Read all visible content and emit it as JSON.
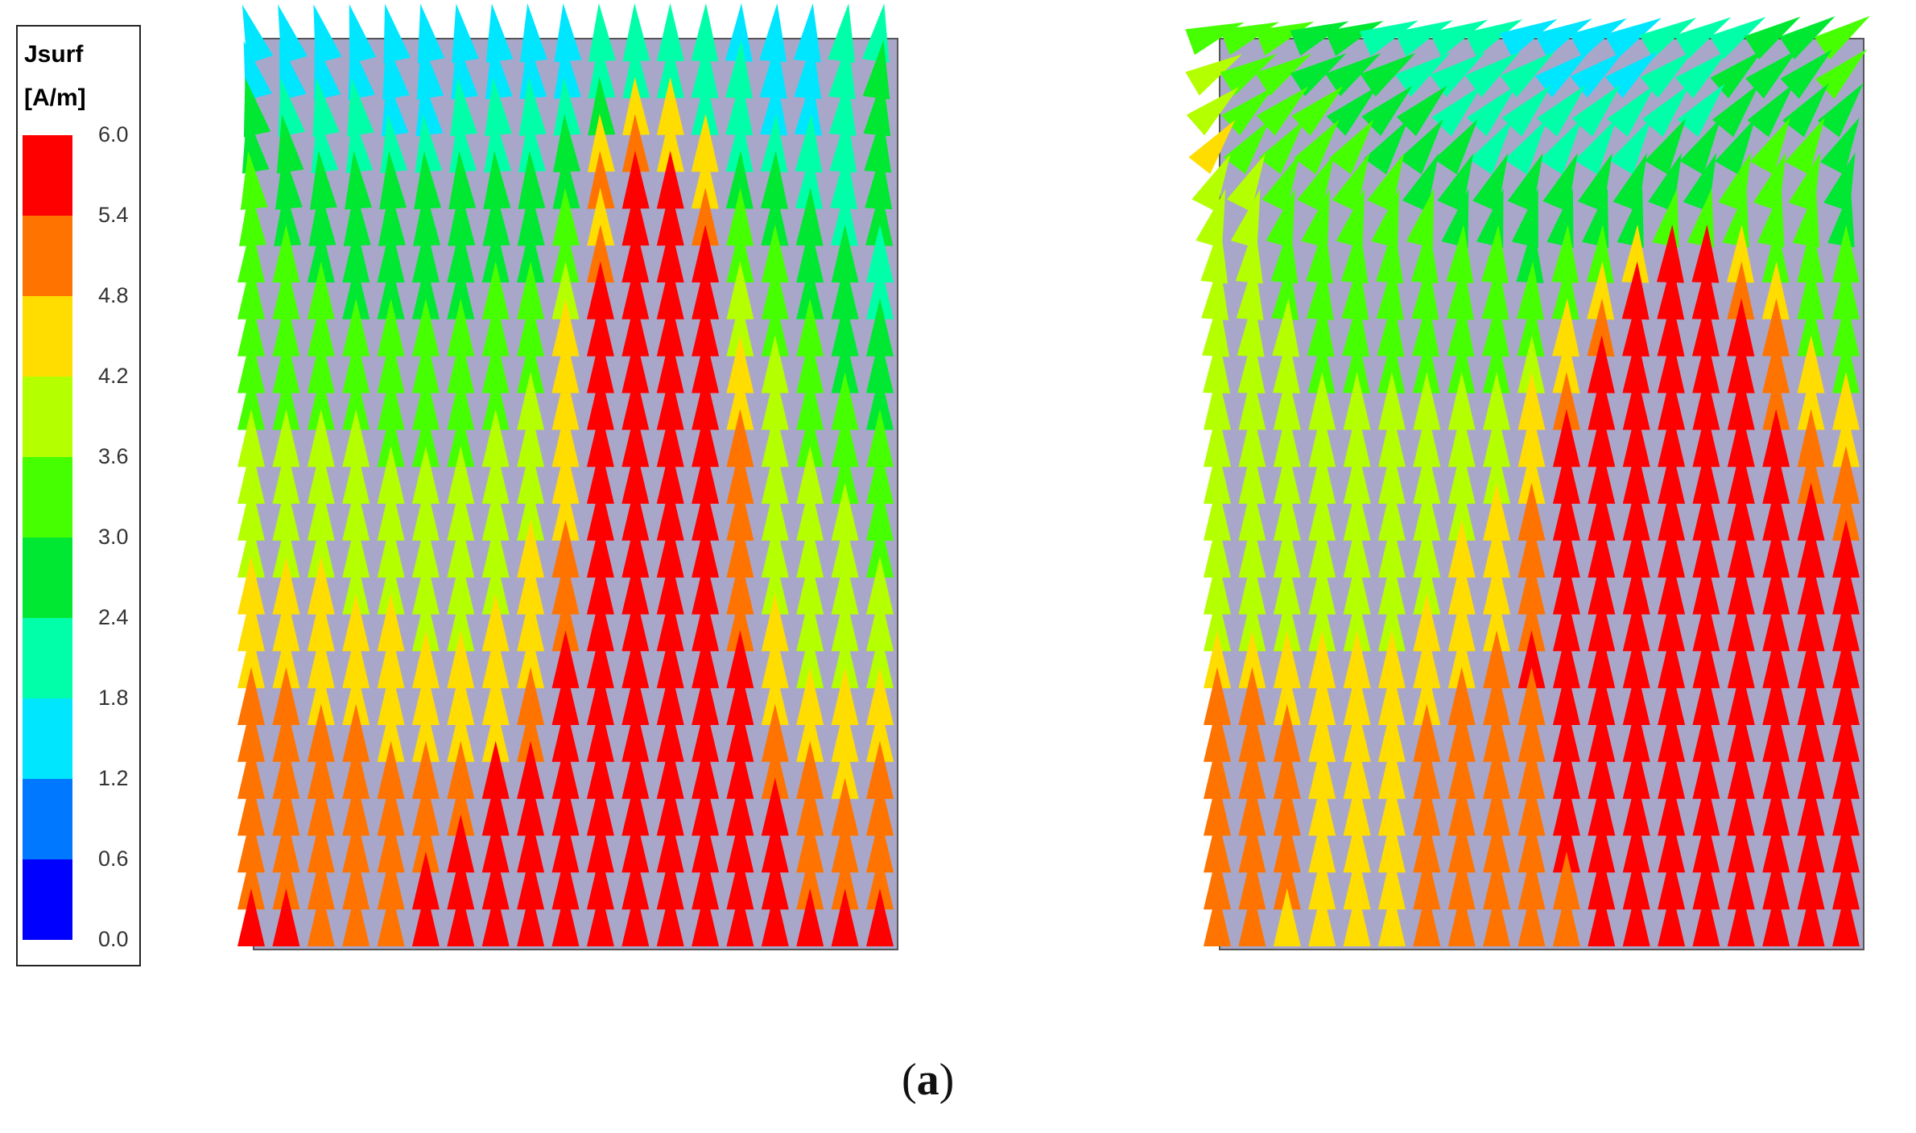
{
  "colorbar": {
    "title_line1": "Jsurf",
    "title_line2": "[A/m]",
    "ticks": [
      "6.0",
      "5.4",
      "4.8",
      "4.2",
      "3.6",
      "3.0",
      "2.4",
      "1.8",
      "1.2",
      "0.6",
      "0.0"
    ],
    "colors": [
      "#ff0000",
      "#ff7300",
      "#ffdd00",
      "#b4ff00",
      "#46ff00",
      "#00e832",
      "#00ffa8",
      "#00e6ff",
      "#0078ff",
      "#0000ff"
    ]
  },
  "caption": {
    "label": "a"
  },
  "chart_data": [
    {
      "type": "vector-field",
      "quantity": "Jsurf",
      "unit": "A/m",
      "color_range": [
        0.0,
        6.0
      ],
      "rows": 25,
      "cols": 19,
      "magnitude_grid": [
        [
          1.5,
          1.6,
          1.5,
          1.4,
          1.5,
          1.5,
          1.6,
          1.5,
          1.4,
          1.5,
          1.9,
          2.0,
          2.0,
          1.8,
          1.7,
          1.6,
          1.5,
          1.9,
          2.2
        ],
        [
          1.6,
          1.5,
          1.5,
          1.5,
          1.4,
          1.5,
          1.6,
          1.5,
          1.5,
          1.6,
          2.2,
          2.2,
          2.0,
          1.9,
          1.8,
          1.6,
          1.6,
          2.1,
          2.6
        ],
        [
          2.4,
          2.0,
          1.9,
          1.8,
          1.7,
          1.7,
          1.8,
          1.9,
          2.0,
          2.1,
          2.6,
          4.6,
          4.5,
          2.0,
          1.9,
          1.7,
          1.5,
          2.0,
          2.6
        ],
        [
          2.8,
          2.4,
          2.3,
          2.2,
          2.2,
          2.1,
          2.1,
          2.2,
          2.3,
          2.4,
          4.6,
          5.3,
          4.6,
          4.4,
          2.1,
          2.0,
          1.9,
          2.2,
          2.6
        ],
        [
          3.0,
          2.7,
          2.6,
          2.5,
          2.4,
          2.4,
          2.4,
          2.4,
          2.5,
          2.7,
          4.8,
          5.6,
          5.7,
          4.6,
          2.6,
          2.4,
          2.2,
          2.1,
          2.5
        ],
        [
          3.1,
          2.9,
          2.8,
          2.7,
          2.6,
          2.6,
          2.6,
          2.7,
          2.8,
          3.0,
          4.7,
          5.8,
          5.8,
          5.0,
          3.0,
          2.7,
          2.5,
          2.3,
          2.5
        ],
        [
          3.1,
          3.0,
          2.9,
          2.8,
          2.8,
          2.8,
          2.8,
          2.9,
          2.9,
          3.3,
          5.1,
          6.0,
          6.0,
          5.8,
          3.4,
          3.0,
          2.7,
          2.4,
          2.3
        ],
        [
          3.2,
          3.1,
          3.0,
          2.9,
          2.9,
          2.9,
          2.9,
          3.0,
          3.1,
          3.8,
          5.6,
          6.0,
          6.0,
          5.8,
          3.8,
          3.2,
          2.9,
          2.6,
          2.3
        ],
        [
          3.2,
          3.2,
          3.1,
          3.0,
          3.0,
          3.0,
          3.0,
          3.1,
          3.3,
          4.4,
          6.0,
          6.0,
          6.0,
          6.0,
          4.1,
          3.4,
          3.0,
          2.8,
          2.4
        ],
        [
          3.3,
          3.2,
          3.2,
          3.1,
          3.1,
          3.1,
          3.1,
          3.2,
          3.5,
          4.5,
          6.0,
          6.0,
          6.0,
          6.0,
          4.4,
          3.6,
          3.2,
          2.9,
          2.4
        ],
        [
          3.3,
          3.3,
          3.3,
          3.2,
          3.2,
          3.2,
          3.3,
          3.4,
          3.8,
          4.6,
          6.0,
          6.0,
          6.0,
          6.0,
          4.6,
          3.8,
          3.3,
          3.1,
          2.6
        ],
        [
          3.8,
          3.7,
          3.6,
          3.6,
          3.5,
          3.5,
          3.5,
          3.6,
          3.9,
          4.6,
          6.0,
          6.0,
          6.0,
          6.0,
          5.0,
          4.0,
          3.4,
          3.2,
          3.0
        ],
        [
          3.9,
          3.8,
          3.8,
          3.7,
          3.7,
          3.7,
          3.7,
          3.8,
          4.0,
          4.7,
          6.0,
          6.0,
          6.0,
          6.0,
          5.2,
          4.1,
          3.6,
          3.4,
          3.1
        ],
        [
          3.9,
          3.9,
          3.9,
          3.8,
          3.8,
          3.8,
          3.8,
          3.9,
          4.1,
          4.7,
          6.0,
          6.0,
          6.0,
          6.0,
          5.2,
          4.0,
          3.7,
          3.6,
          3.3
        ],
        [
          4.0,
          4.0,
          4.0,
          3.9,
          3.9,
          3.9,
          3.9,
          4.0,
          4.2,
          4.8,
          6.0,
          6.0,
          6.0,
          6.0,
          5.0,
          4.0,
          3.8,
          3.8,
          3.5
        ],
        [
          4.5,
          4.3,
          4.2,
          4.1,
          4.0,
          4.0,
          4.0,
          4.1,
          4.3,
          5.0,
          6.0,
          6.0,
          6.0,
          6.0,
          4.8,
          4.1,
          3.9,
          3.9,
          3.7
        ],
        [
          4.6,
          4.5,
          4.4,
          4.3,
          4.2,
          4.1,
          4.1,
          4.2,
          4.4,
          5.2,
          6.0,
          6.0,
          6.0,
          6.0,
          5.0,
          4.2,
          4.0,
          4.0,
          3.8
        ],
        [
          4.7,
          4.6,
          4.5,
          4.4,
          4.3,
          4.3,
          4.2,
          4.2,
          4.5,
          5.4,
          6.0,
          6.0,
          6.0,
          6.0,
          5.4,
          4.4,
          4.0,
          4.0,
          4.0
        ],
        [
          4.9,
          4.8,
          4.7,
          4.6,
          4.5,
          4.4,
          4.3,
          4.2,
          4.8,
          5.8,
          6.0,
          6.0,
          6.0,
          6.0,
          5.6,
          4.6,
          4.2,
          4.2,
          4.2
        ],
        [
          5.0,
          5.0,
          4.9,
          4.8,
          4.7,
          4.6,
          4.5,
          4.4,
          5.1,
          6.0,
          6.0,
          6.0,
          6.0,
          6.0,
          5.8,
          5.0,
          4.5,
          4.4,
          4.5
        ],
        [
          5.1,
          5.1,
          5.1,
          5.0,
          4.9,
          5.0,
          4.9,
          5.4,
          5.6,
          6.0,
          6.0,
          6.0,
          6.0,
          6.0,
          6.0,
          5.3,
          4.8,
          4.7,
          4.8
        ],
        [
          5.2,
          5.2,
          5.2,
          5.1,
          5.1,
          5.2,
          5.2,
          5.7,
          6.0,
          6.0,
          6.0,
          6.0,
          6.0,
          6.0,
          6.0,
          5.6,
          5.1,
          5.0,
          5.0
        ],
        [
          5.3,
          5.3,
          5.3,
          5.2,
          5.2,
          5.3,
          5.6,
          6.0,
          6.0,
          6.0,
          6.0,
          6.0,
          6.0,
          6.0,
          6.0,
          5.8,
          5.2,
          5.1,
          5.1
        ],
        [
          5.3,
          5.3,
          5.3,
          5.3,
          5.3,
          5.4,
          5.9,
          6.0,
          6.0,
          6.0,
          6.0,
          6.0,
          6.0,
          6.0,
          6.0,
          6.0,
          5.3,
          5.2,
          5.2
        ],
        [
          5.4,
          5.4,
          5.3,
          5.3,
          5.3,
          5.4,
          6.0,
          6.0,
          6.0,
          6.0,
          6.0,
          6.0,
          6.0,
          6.0,
          6.0,
          6.0,
          6.0,
          5.4,
          5.9
        ]
      ]
    },
    {
      "type": "vector-field",
      "quantity": "Jsurf",
      "unit": "A/m",
      "color_range": [
        0.0,
        6.0
      ],
      "rows": 25,
      "cols": 19,
      "magnitude_grid": [
        [
          3.5,
          3.3,
          3.0,
          2.8,
          2.5,
          2.3,
          2.1,
          1.9,
          1.8,
          1.7,
          1.6,
          1.5,
          1.6,
          1.8,
          2.0,
          2.3,
          2.6,
          2.9,
          3.2
        ],
        [
          3.6,
          3.3,
          3.0,
          2.9,
          2.7,
          2.5,
          2.3,
          2.1,
          1.9,
          1.8,
          1.7,
          1.6,
          1.7,
          1.8,
          2.1,
          2.4,
          2.6,
          2.8,
          3.0
        ],
        [
          4.0,
          3.4,
          3.2,
          3.0,
          2.9,
          2.7,
          2.5,
          2.3,
          2.1,
          2.0,
          2.0,
          1.9,
          2.0,
          2.1,
          2.3,
          2.6,
          2.8,
          2.9,
          2.9
        ],
        [
          4.2,
          3.5,
          3.3,
          3.1,
          3.0,
          2.9,
          2.7,
          2.5,
          2.3,
          2.2,
          2.2,
          2.2,
          2.3,
          2.4,
          2.6,
          2.8,
          3.0,
          3.0,
          2.8
        ],
        [
          4.0,
          3.6,
          3.4,
          3.3,
          3.2,
          3.1,
          2.9,
          2.7,
          2.6,
          2.5,
          2.5,
          2.5,
          2.6,
          2.7,
          2.9,
          3.0,
          3.1,
          3.1,
          2.8
        ],
        [
          3.9,
          3.6,
          3.5,
          3.4,
          3.3,
          3.2,
          3.1,
          2.9,
          2.8,
          2.7,
          2.7,
          2.8,
          2.9,
          3.0,
          3.1,
          3.2,
          3.2,
          3.2,
          2.9
        ],
        [
          3.8,
          3.6,
          3.5,
          3.4,
          3.4,
          3.3,
          3.2,
          3.1,
          3.0,
          2.9,
          3.0,
          3.2,
          4.4,
          5.6,
          5.6,
          4.5,
          3.3,
          3.2,
          3.0
        ],
        [
          3.7,
          3.6,
          3.5,
          3.5,
          3.4,
          3.4,
          3.3,
          3.2,
          3.1,
          3.1,
          3.3,
          4.6,
          5.4,
          6.0,
          6.0,
          5.0,
          4.6,
          3.3,
          3.1
        ],
        [
          3.7,
          3.6,
          3.6,
          3.5,
          3.5,
          3.4,
          3.4,
          3.3,
          3.3,
          3.3,
          4.3,
          5.2,
          6.0,
          6.0,
          6.0,
          5.4,
          4.8,
          3.4,
          3.2
        ],
        [
          3.7,
          3.6,
          3.6,
          3.5,
          3.5,
          3.5,
          3.5,
          3.4,
          3.4,
          3.7,
          4.6,
          5.6,
          6.0,
          6.0,
          6.0,
          5.8,
          5.0,
          4.4,
          3.3
        ],
        [
          3.7,
          3.6,
          3.6,
          3.6,
          3.6,
          3.6,
          3.6,
          3.6,
          3.7,
          4.2,
          5.0,
          5.9,
          6.0,
          6.0,
          6.0,
          6.0,
          5.2,
          4.6,
          4.3
        ],
        [
          3.7,
          3.6,
          3.6,
          3.6,
          3.6,
          3.7,
          3.7,
          3.7,
          3.9,
          4.4,
          5.4,
          6.0,
          6.0,
          6.0,
          6.0,
          6.0,
          5.4,
          4.9,
          4.6
        ],
        [
          3.7,
          3.7,
          3.7,
          3.7,
          3.7,
          3.8,
          3.8,
          3.8,
          4.0,
          4.6,
          5.6,
          6.0,
          6.0,
          6.0,
          6.0,
          6.0,
          5.6,
          5.1,
          4.9
        ],
        [
          3.8,
          3.8,
          3.8,
          3.8,
          3.8,
          3.8,
          3.9,
          4.0,
          4.2,
          4.9,
          5.8,
          6.0,
          6.0,
          6.0,
          6.0,
          6.0,
          5.8,
          5.4,
          5.3
        ],
        [
          3.9,
          3.9,
          3.9,
          3.9,
          3.9,
          4.0,
          4.0,
          4.2,
          4.4,
          5.1,
          6.0,
          6.0,
          6.0,
          6.0,
          6.0,
          6.0,
          6.0,
          5.8,
          5.7
        ],
        [
          3.9,
          3.9,
          3.9,
          3.9,
          4.0,
          4.0,
          4.1,
          4.3,
          4.6,
          5.2,
          6.0,
          6.0,
          6.0,
          6.0,
          6.0,
          6.0,
          6.0,
          6.0,
          6.0
        ],
        [
          4.0,
          4.0,
          4.0,
          4.0,
          4.1,
          4.1,
          4.2,
          4.4,
          4.7,
          5.3,
          6.0,
          6.0,
          6.0,
          6.0,
          6.0,
          6.0,
          6.0,
          6.0,
          6.0
        ],
        [
          4.6,
          4.4,
          4.3,
          4.3,
          4.3,
          4.3,
          4.4,
          4.5,
          4.9,
          5.4,
          5.7,
          5.7,
          6.0,
          6.0,
          6.0,
          6.0,
          6.0,
          6.0,
          6.0
        ],
        [
          5.1,
          4.8,
          4.6,
          4.6,
          4.5,
          4.6,
          4.7,
          4.8,
          5.1,
          5.3,
          5.4,
          5.6,
          6.0,
          6.0,
          6.0,
          6.0,
          6.0,
          6.0,
          6.0
        ],
        [
          5.2,
          5.0,
          4.8,
          4.6,
          4.5,
          4.6,
          5.0,
          5.2,
          5.3,
          5.3,
          5.4,
          5.6,
          6.0,
          6.0,
          6.0,
          6.0,
          6.0,
          6.0,
          6.0
        ],
        [
          5.3,
          5.2,
          4.9,
          4.6,
          4.5,
          4.6,
          5.1,
          5.3,
          5.3,
          5.3,
          5.4,
          5.5,
          5.8,
          6.0,
          6.0,
          6.0,
          6.0,
          6.0,
          6.0
        ],
        [
          5.3,
          5.3,
          5.0,
          4.6,
          4.5,
          4.6,
          5.2,
          5.3,
          5.3,
          5.3,
          5.4,
          5.5,
          5.6,
          6.0,
          6.0,
          6.0,
          6.0,
          6.0,
          6.0
        ],
        [
          5.3,
          5.3,
          5.2,
          4.6,
          4.5,
          4.6,
          5.2,
          5.3,
          5.3,
          5.3,
          5.4,
          5.4,
          5.5,
          5.8,
          6.0,
          6.0,
          6.0,
          6.0,
          6.0
        ],
        [
          5.3,
          5.3,
          5.2,
          4.5,
          4.5,
          4.6,
          5.2,
          5.3,
          5.3,
          5.3,
          5.3,
          5.4,
          5.5,
          5.7,
          6.0,
          6.0,
          6.0,
          6.0,
          6.0
        ],
        [
          5.3,
          5.3,
          4.6,
          4.5,
          4.5,
          4.6,
          5.2,
          5.3,
          5.3,
          5.3,
          5.3,
          5.4,
          5.5,
          5.6,
          6.0,
          6.0,
          6.0,
          6.0,
          6.0
        ]
      ]
    }
  ]
}
